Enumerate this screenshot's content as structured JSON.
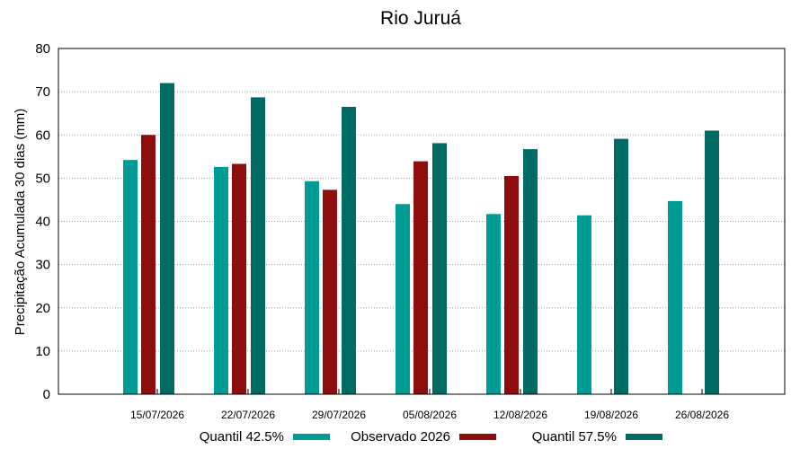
{
  "chart_data": {
    "type": "bar",
    "title": "Rio Juruá",
    "ylabel": "Precipitação Acumulada 30 dias (mm)",
    "xlabel": "",
    "ylim": [
      0,
      80
    ],
    "yticks": [
      0,
      10,
      20,
      30,
      40,
      50,
      60,
      70,
      80
    ],
    "grid": true,
    "legend_position": "bottom",
    "categories": [
      "15/07/2026",
      "22/07/2026",
      "29/07/2026",
      "05/08/2026",
      "12/08/2026",
      "19/08/2026",
      "26/08/2026"
    ],
    "series": [
      {
        "name": "Quantil 42.5%",
        "color": "#009b95",
        "values": [
          54.2,
          52.6,
          49.3,
          44.0,
          41.7,
          41.4,
          44.7
        ]
      },
      {
        "name": "Observado 2026",
        "color": "#8e0e0e",
        "values": [
          60.0,
          53.3,
          47.3,
          53.9,
          50.5,
          null,
          null
        ]
      },
      {
        "name": "Quantil 57.5%",
        "color": "#006b64",
        "values": [
          72.0,
          68.7,
          66.5,
          58.1,
          56.7,
          59.1,
          61.0
        ]
      }
    ]
  }
}
